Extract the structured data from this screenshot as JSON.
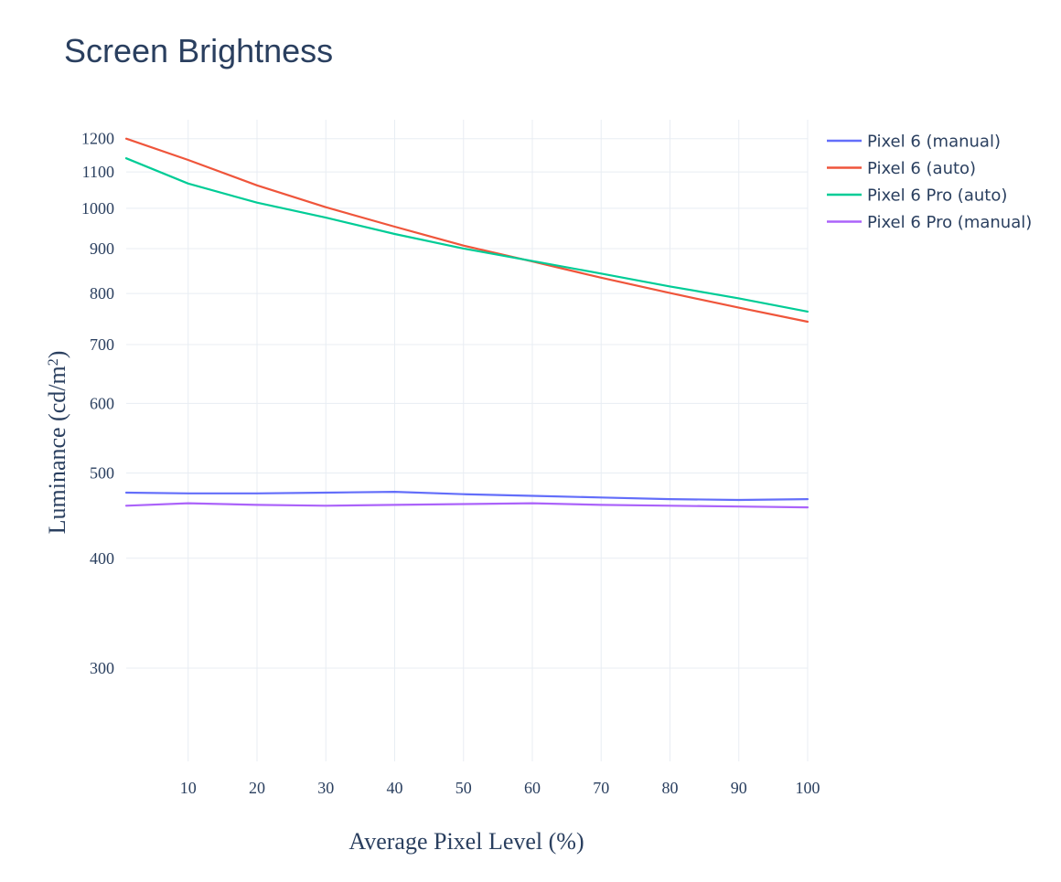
{
  "chart_data": {
    "type": "line",
    "title": "Screen Brightness",
    "xlabel": "Average Pixel Level (%)",
    "ylabel": "Luminance (cd/m",
    "ylabel_sup": "2",
    "ylabel_close": ")",
    "y_scale": "log",
    "xlim": [
      1,
      100
    ],
    "ylim": [
      235,
      1205
    ],
    "x_ticks": [
      10,
      20,
      30,
      40,
      50,
      60,
      70,
      80,
      90,
      100
    ],
    "y_ticks": [
      300,
      400,
      500,
      600,
      700,
      800,
      900,
      1000,
      1100,
      1200
    ],
    "grid": true,
    "legend_position": "top-right",
    "x": [
      1,
      10,
      20,
      30,
      40,
      50,
      60,
      70,
      80,
      90,
      100
    ],
    "series": [
      {
        "name": "Pixel 6 (manual)",
        "color": "#636efa",
        "values": [
          475,
          474,
          474,
          475,
          476,
          473,
          471,
          469,
          467,
          466,
          467
        ]
      },
      {
        "name": "Pixel 6 (auto)",
        "color": "#ef553b",
        "values": [
          1200,
          1135,
          1062,
          1003,
          953,
          907,
          870,
          834,
          801,
          771,
          743
        ]
      },
      {
        "name": "Pixel 6 Pro (auto)",
        "color": "#00cc96",
        "values": [
          1140,
          1067,
          1015,
          976,
          935,
          900,
          871,
          843,
          815,
          790,
          763
        ]
      },
      {
        "name": "Pixel 6 Pro (manual)",
        "color": "#ab63fa",
        "values": [
          459,
          462,
          460,
          459,
          460,
          461,
          462,
          460,
          459,
          458,
          457
        ]
      }
    ]
  }
}
